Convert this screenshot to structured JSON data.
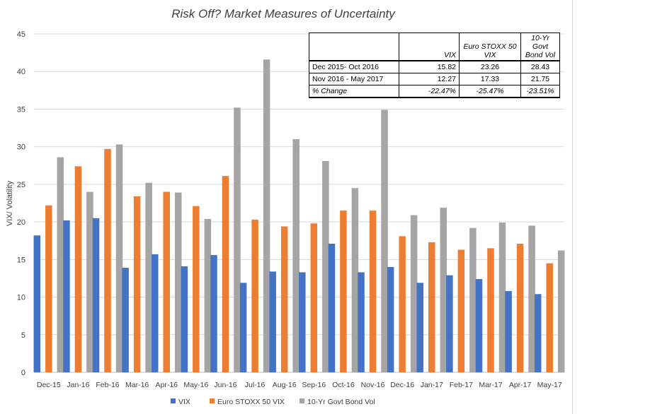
{
  "chart_data": {
    "type": "bar",
    "title": "Risk Off? Market Measures of Uncertainty",
    "ylabel": "VIX/ Volatility",
    "xlabel": "",
    "ylim": [
      0,
      45
    ],
    "yticks": [
      0,
      5,
      10,
      15,
      20,
      25,
      30,
      35,
      40,
      45
    ],
    "grid": true,
    "legend_position": "bottom",
    "categories": [
      "Dec-15",
      "Jan-16",
      "Feb-16",
      "Mar-16",
      "Apr-16",
      "May-16",
      "Jun-16",
      "Jul-16",
      "Aug-16",
      "Sep-16",
      "Oct-16",
      "Nov-16",
      "Dec-16",
      "Jan-17",
      "Feb-17",
      "Mar-17",
      "Apr-17",
      "May-17"
    ],
    "series": [
      {
        "name": "VIX",
        "color": "#4472c4",
        "values": [
          18.2,
          20.2,
          20.5,
          13.9,
          15.7,
          14.1,
          15.6,
          11.9,
          13.4,
          13.3,
          17.1,
          13.3,
          14.0,
          11.9,
          12.9,
          12.4,
          10.8,
          10.4
        ]
      },
      {
        "name": "Euro STOXX 50 VIX",
        "color": "#ed7d31",
        "values": [
          22.2,
          27.4,
          29.7,
          23.4,
          24.0,
          22.1,
          26.1,
          20.3,
          19.4,
          19.8,
          21.5,
          21.5,
          18.1,
          17.3,
          16.3,
          16.5,
          17.1,
          14.5
        ]
      },
      {
        "name": "10-Yr Govt Bond Vol",
        "color": "#a5a5a5",
        "values": [
          28.6,
          24.0,
          30.3,
          25.2,
          23.9,
          20.4,
          35.2,
          41.6,
          31.0,
          28.1,
          24.5,
          34.9,
          20.9,
          21.9,
          19.2,
          19.9,
          19.5,
          16.2
        ]
      }
    ]
  },
  "table": {
    "headers": [
      "",
      "VIX",
      "Euro STOXX 50 VIX",
      "10-Yr Govt Bond Vol"
    ],
    "rows": [
      [
        "Dec 2015- Oct 2016",
        "15.82",
        "23.26",
        "28.43"
      ],
      [
        "Nov 2016 - May 2017",
        "12.27",
        "17.33",
        "21.75"
      ],
      [
        "% Change",
        "-22.47%",
        "-25.47%",
        "-23.51%"
      ]
    ]
  }
}
